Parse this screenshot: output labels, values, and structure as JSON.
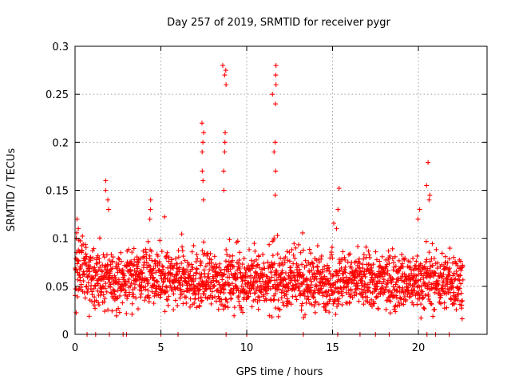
{
  "chart_data": {
    "type": "scatter",
    "title": "Day 257 of 2019, SRMTID for receiver pygr",
    "xlabel": "GPS time / hours",
    "ylabel": "SRMTID / TECUs",
    "xlim": [
      0,
      24
    ],
    "ylim": [
      0,
      0.3
    ],
    "xticks": [
      0,
      5,
      10,
      15,
      20
    ],
    "xtick_labels": [
      "0",
      "5",
      "10",
      "15",
      "20"
    ],
    "yticks": [
      0,
      0.05,
      0.1,
      0.15,
      0.2,
      0.25,
      0.3
    ],
    "ytick_labels": [
      "0",
      "0.05",
      "0.1",
      "0.15",
      "0.2",
      "0.25",
      "0.3"
    ],
    "grid": true,
    "marker": "plus",
    "series": [
      {
        "name": "SRMTID",
        "color": "#ff0000",
        "x_range": [
          0,
          22.6
        ],
        "baseline_median": 0.055,
        "zero_value_times": [
          0.7,
          1.2,
          2.0,
          2.8,
          3.0,
          5.0,
          6.0,
          8.8,
          10.0,
          13.3,
          15.3,
          16.6,
          17.5,
          18.3,
          20.5,
          21.0,
          21.8
        ],
        "spikes": [
          {
            "x": 0.1,
            "values": [
              0.12,
              0.11,
              0.1
            ]
          },
          {
            "x": 1.9,
            "values": [
              0.16,
              0.15,
              0.14,
              0.13
            ]
          },
          {
            "x": 4.4,
            "values": [
              0.14,
              0.13,
              0.12
            ]
          },
          {
            "x": 7.5,
            "values": [
              0.22,
              0.21,
              0.2,
              0.19,
              0.17,
              0.16,
              0.14
            ]
          },
          {
            "x": 8.7,
            "values": [
              0.28,
              0.275,
              0.27,
              0.26,
              0.21,
              0.2,
              0.19,
              0.17,
              0.15
            ]
          },
          {
            "x": 11.6,
            "values": [
              0.28,
              0.27,
              0.26,
              0.25,
              0.24,
              0.2,
              0.19,
              0.17,
              0.145
            ]
          },
          {
            "x": 15.3,
            "values": [
              0.152,
              0.13,
              0.11
            ]
          },
          {
            "x": 20.1,
            "values": [
              0.13,
              0.12
            ]
          },
          {
            "x": 20.6,
            "values": [
              0.179,
              0.155,
              0.145,
              0.14
            ]
          }
        ]
      }
    ]
  }
}
